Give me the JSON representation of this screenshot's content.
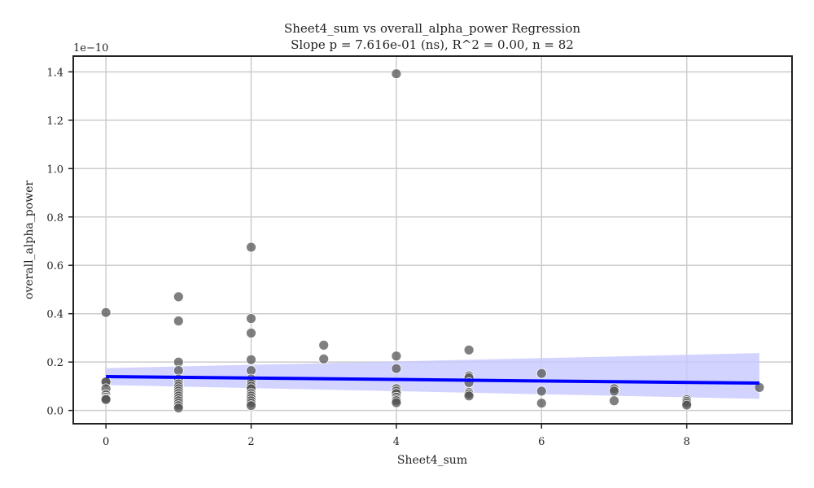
{
  "chart_data": {
    "type": "scatter",
    "title": "Sheet4_sum vs overall_alpha_power Regression",
    "subtitle": "Slope p = 7.616e-01 (ns), R^2 = 0.00, n = 82",
    "xlabel": "Sheet4_sum",
    "ylabel": "overall_alpha_power",
    "y_offset_label": "1e−10",
    "xlim": [
      -0.45,
      9.45
    ],
    "ylim": [
      -0.055,
      1.465
    ],
    "y_scale_note": "values shown in units of 1e-10",
    "x_ticks": [
      0,
      2,
      4,
      6,
      8
    ],
    "x_tick_labels": [
      "0",
      "2",
      "4",
      "6",
      "8"
    ],
    "y_ticks": [
      0.0,
      0.2,
      0.4,
      0.6,
      0.8,
      1.0,
      1.2,
      1.4
    ],
    "y_tick_labels": [
      "0.0",
      "0.2",
      "0.4",
      "0.6",
      "0.8",
      "1.0",
      "1.2",
      "1.4"
    ],
    "grid": true,
    "points": [
      {
        "x": 0,
        "y": 0.405
      },
      {
        "x": 0,
        "y": 0.12
      },
      {
        "x": 0,
        "y": 0.118
      },
      {
        "x": 0,
        "y": 0.09
      },
      {
        "x": 0,
        "y": 0.065
      },
      {
        "x": 0,
        "y": 0.055
      },
      {
        "x": 0,
        "y": 0.048
      },
      {
        "x": 0,
        "y": 0.045
      },
      {
        "x": 1,
        "y": 0.47
      },
      {
        "x": 1,
        "y": 0.37
      },
      {
        "x": 1,
        "y": 0.2
      },
      {
        "x": 1,
        "y": 0.165
      },
      {
        "x": 1,
        "y": 0.13
      },
      {
        "x": 1,
        "y": 0.11
      },
      {
        "x": 1,
        "y": 0.1
      },
      {
        "x": 1,
        "y": 0.09
      },
      {
        "x": 1,
        "y": 0.08
      },
      {
        "x": 1,
        "y": 0.07
      },
      {
        "x": 1,
        "y": 0.06
      },
      {
        "x": 1,
        "y": 0.05
      },
      {
        "x": 1,
        "y": 0.04
      },
      {
        "x": 1,
        "y": 0.03
      },
      {
        "x": 1,
        "y": 0.02
      },
      {
        "x": 1,
        "y": 0.01
      },
      {
        "x": 2,
        "y": 0.675
      },
      {
        "x": 2,
        "y": 0.38
      },
      {
        "x": 2,
        "y": 0.32
      },
      {
        "x": 2,
        "y": 0.21
      },
      {
        "x": 2,
        "y": 0.165
      },
      {
        "x": 2,
        "y": 0.13
      },
      {
        "x": 2,
        "y": 0.12
      },
      {
        "x": 2,
        "y": 0.11
      },
      {
        "x": 2,
        "y": 0.1
      },
      {
        "x": 2,
        "y": 0.09
      },
      {
        "x": 2,
        "y": 0.07
      },
      {
        "x": 2,
        "y": 0.06
      },
      {
        "x": 2,
        "y": 0.05
      },
      {
        "x": 2,
        "y": 0.04
      },
      {
        "x": 2,
        "y": 0.03
      },
      {
        "x": 2,
        "y": 0.02
      },
      {
        "x": 3,
        "y": 0.27
      },
      {
        "x": 3,
        "y": 0.213
      },
      {
        "x": 4,
        "y": 1.392
      },
      {
        "x": 4,
        "y": 0.225
      },
      {
        "x": 4,
        "y": 0.173
      },
      {
        "x": 4,
        "y": 0.09
      },
      {
        "x": 4,
        "y": 0.08
      },
      {
        "x": 4,
        "y": 0.07
      },
      {
        "x": 4,
        "y": 0.055
      },
      {
        "x": 4,
        "y": 0.045
      },
      {
        "x": 4,
        "y": 0.04
      },
      {
        "x": 4,
        "y": 0.032
      },
      {
        "x": 5,
        "y": 0.25
      },
      {
        "x": 5,
        "y": 0.143
      },
      {
        "x": 5,
        "y": 0.135
      },
      {
        "x": 5,
        "y": 0.115
      },
      {
        "x": 5,
        "y": 0.075
      },
      {
        "x": 5,
        "y": 0.068
      },
      {
        "x": 5,
        "y": 0.06
      },
      {
        "x": 6,
        "y": 0.153
      },
      {
        "x": 6,
        "y": 0.08
      },
      {
        "x": 6,
        "y": 0.03
      },
      {
        "x": 7,
        "y": 0.09
      },
      {
        "x": 7,
        "y": 0.08
      },
      {
        "x": 7,
        "y": 0.04
      },
      {
        "x": 8,
        "y": 0.045
      },
      {
        "x": 8,
        "y": 0.038
      },
      {
        "x": 8,
        "y": 0.03
      },
      {
        "x": 8,
        "y": 0.022
      },
      {
        "x": 9,
        "y": 0.095
      }
    ],
    "regression": {
      "x_range": [
        0,
        9
      ],
      "line_y": [
        0.14,
        0.113
      ],
      "ci_upper": [
        0.175,
        0.237
      ],
      "ci_lower": [
        0.105,
        0.048
      ]
    },
    "colors": {
      "point_fill": "#555555",
      "point_edge": "#ffffff",
      "line": "#0000ff",
      "band": "#c8c8ff",
      "grid": "#cccccc",
      "axis": "#222222"
    }
  }
}
